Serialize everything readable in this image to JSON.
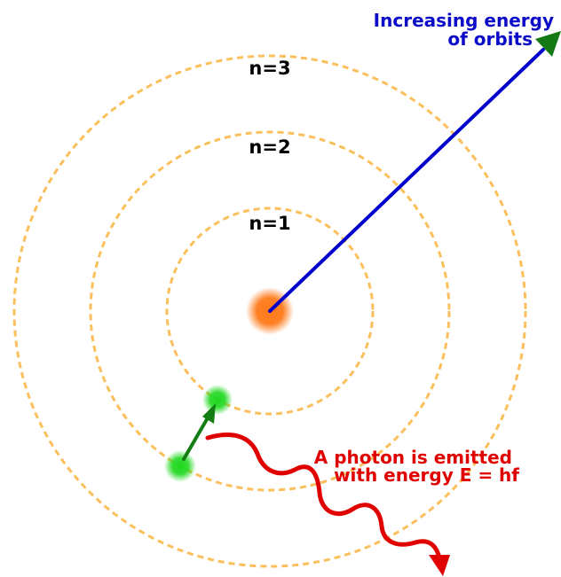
{
  "orbits": [
    {
      "label": "n=1"
    },
    {
      "label": "n=2"
    },
    {
      "label": "n=3"
    }
  ],
  "energy_arrow": {
    "line1": "Increasing energy",
    "line2": "of orbits"
  },
  "photon": {
    "line1": "A photon is emitted",
    "line2": "with energy E = hf"
  },
  "colors": {
    "orbit": "#fbbf5b",
    "nucleus": "#ff7a1a",
    "electron": "#1fd81f",
    "energy_arrow_line": "#0000cc",
    "energy_arrow_head": "#157a15",
    "energy_text": "#0b0bc8",
    "transition_arrow": "#137d13",
    "photon_wave": "#e00000",
    "photon_text": "#e00000"
  }
}
